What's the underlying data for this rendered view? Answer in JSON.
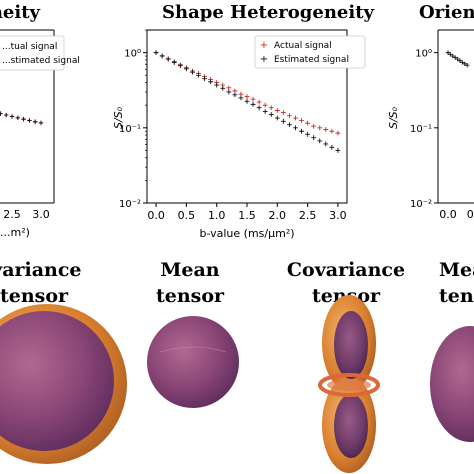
{
  "chart_data": [
    {
      "type": "scatter",
      "title": "...geneity",
      "xlabel": "...m²)",
      "ylabel": "",
      "x_ticks": [
        "2.5",
        "3.0"
      ],
      "legend": [
        "...tual signal",
        "...stimated signal"
      ],
      "legend_placement": "top-right",
      "series": [
        {
          "name": "Actual signal",
          "marker": "plus",
          "color": "#d42a2a",
          "x": [
            2.0,
            2.1,
            2.2,
            2.3,
            2.4,
            2.5,
            2.6,
            2.7,
            2.8,
            2.9,
            3.0
          ],
          "y": [
            0.178,
            0.168,
            0.162,
            0.155,
            0.148,
            0.142,
            0.136,
            0.131,
            0.126,
            0.121,
            0.117
          ]
        },
        {
          "name": "Estimated signal",
          "marker": "plus",
          "color": "#111111",
          "x": [
            2.0,
            2.1,
            2.2,
            2.3,
            2.4,
            2.5,
            2.6,
            2.7,
            2.8,
            2.9,
            3.0
          ],
          "y": [
            0.176,
            0.169,
            0.161,
            0.154,
            0.148,
            0.141,
            0.136,
            0.13,
            0.125,
            0.12,
            0.116
          ]
        }
      ]
    },
    {
      "type": "scatter",
      "title": "Shape Heterogeneity",
      "xlabel": "b-value (ms/μm²)",
      "ylabel": "S/S₀",
      "y_scale": "log",
      "ylim": [
        0.01,
        2
      ],
      "xlim": [
        -0.15,
        3.15
      ],
      "x_ticks": [
        "0.0",
        "0.5",
        "1.0",
        "1.5",
        "2.0",
        "2.5",
        "3.0"
      ],
      "y_ticks": [
        "10⁰",
        "10⁻¹",
        "10⁻²"
      ],
      "grid": false,
      "legend": [
        "Actual signal",
        "Estimated signal"
      ],
      "legend_placement": "top-right",
      "series": [
        {
          "name": "Actual signal",
          "marker": "plus",
          "color": "#d42a2a",
          "x": [
            0.0,
            0.1,
            0.2,
            0.3,
            0.4,
            0.5,
            0.6,
            0.7,
            0.8,
            0.9,
            1.0,
            1.1,
            1.2,
            1.3,
            1.4,
            1.5,
            1.6,
            1.7,
            1.8,
            1.9,
            2.0,
            2.1,
            2.2,
            2.3,
            2.4,
            2.5,
            2.6,
            2.7,
            2.8,
            2.9,
            3.0
          ],
          "y": [
            1.0,
            0.91,
            0.83,
            0.76,
            0.69,
            0.63,
            0.57,
            0.53,
            0.48,
            0.44,
            0.4,
            0.37,
            0.34,
            0.31,
            0.28,
            0.26,
            0.24,
            0.22,
            0.2,
            0.185,
            0.17,
            0.16,
            0.145,
            0.135,
            0.125,
            0.115,
            0.105,
            0.1,
            0.095,
            0.09,
            0.085
          ]
        },
        {
          "name": "Estimated signal",
          "marker": "plus",
          "color": "#111111",
          "x": [
            0.0,
            0.1,
            0.2,
            0.3,
            0.4,
            0.5,
            0.6,
            0.7,
            0.8,
            0.9,
            1.0,
            1.1,
            1.2,
            1.3,
            1.4,
            1.5,
            1.6,
            1.7,
            1.8,
            1.9,
            2.0,
            2.1,
            2.2,
            2.3,
            2.4,
            2.5,
            2.6,
            2.7,
            2.8,
            2.9,
            3.0
          ],
          "y": [
            1.0,
            0.9,
            0.82,
            0.74,
            0.67,
            0.61,
            0.55,
            0.5,
            0.45,
            0.41,
            0.37,
            0.335,
            0.3,
            0.275,
            0.25,
            0.225,
            0.205,
            0.185,
            0.165,
            0.15,
            0.135,
            0.122,
            0.11,
            0.1,
            0.09,
            0.082,
            0.074,
            0.067,
            0.061,
            0.055,
            0.05
          ]
        }
      ]
    },
    {
      "type": "scatter",
      "title": "Orien...",
      "xlabel": "",
      "ylabel": "S/S₀",
      "y_scale": "log",
      "x_ticks": [
        "0.0",
        "0."
      ],
      "y_ticks": [
        "10⁰",
        "10⁻¹",
        "10⁻²"
      ],
      "series": [
        {
          "name": "Estimated signal",
          "marker": "plus",
          "color": "#111111",
          "x": [
            0.0,
            0.05,
            0.1,
            0.15,
            0.2,
            0.25,
            0.3,
            0.35,
            0.4
          ],
          "y": [
            1.0,
            0.95,
            0.9,
            0.86,
            0.82,
            0.78,
            0.74,
            0.71,
            0.68
          ]
        }
      ]
    }
  ],
  "tensor_labels": [
    {
      "line1": "ovariance",
      "line2": "tensor"
    },
    {
      "line1": "Mean",
      "line2": "tensor"
    },
    {
      "line1": "Covariance",
      "line2": "tensor"
    },
    {
      "line1": "Mea",
      "line2": "tens"
    }
  ],
  "colors": {
    "actual": "#d42a2a",
    "estimated": "#111111",
    "sphere_purple": "#8e4a78",
    "shell_orange": "#d98a3a"
  }
}
